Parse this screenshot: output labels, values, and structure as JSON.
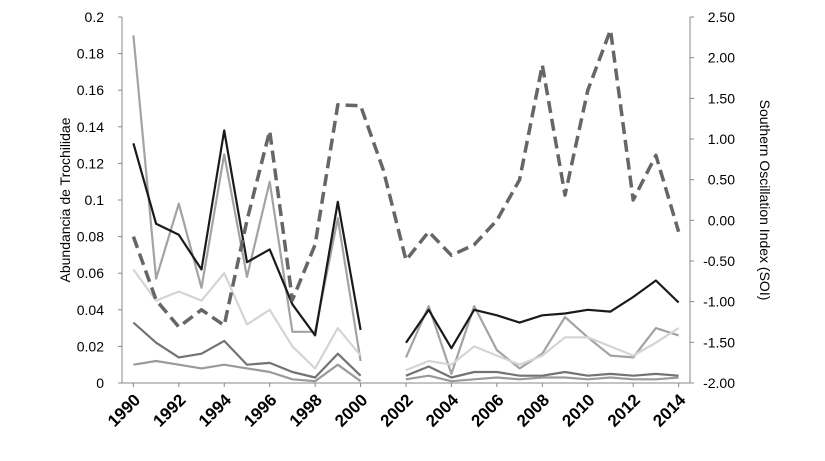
{
  "chart_data": {
    "type": "line",
    "y_label": "Abundancia de Trochilidae",
    "y2_label": "Southern Oscillation Index (SOI)",
    "x": [
      1990,
      1991,
      1992,
      1993,
      1994,
      1995,
      1996,
      1997,
      1998,
      1999,
      2000,
      2001,
      2002,
      2003,
      2004,
      2005,
      2006,
      2007,
      2008,
      2009,
      2010,
      2011,
      2012,
      2013,
      2014
    ],
    "xlim": [
      1989.5,
      2014.5
    ],
    "xticks": [
      1990,
      1992,
      1994,
      1996,
      1998,
      2000,
      2002,
      2004,
      2006,
      2008,
      2010,
      2012,
      2014
    ],
    "ylim": [
      0,
      0.2
    ],
    "yticks": [
      0,
      0.02,
      0.04,
      0.06,
      0.08,
      0.1,
      0.12,
      0.14,
      0.16,
      0.18,
      0.2
    ],
    "y2lim": [
      -2,
      2.5
    ],
    "y2ticks": [
      {
        "value": -2,
        "label": "-2.00"
      },
      {
        "value": -1.5,
        "label": "-1.50"
      },
      {
        "value": -1,
        "label": "-1.00"
      },
      {
        "value": -0.5,
        "label": "-0.50"
      },
      {
        "value": 0,
        "label": "0.00"
      },
      {
        "value": 0.5,
        "label": "0.50"
      },
      {
        "value": 1,
        "label": "1.00"
      },
      {
        "value": 1.5,
        "label": "1.50"
      },
      {
        "value": 2,
        "label": "2.00"
      },
      {
        "value": 2.5,
        "label": "2.50"
      }
    ],
    "series": [
      {
        "color": "#a3a3a3",
        "values": [
          0.19,
          0.057,
          0.098,
          0.052,
          0.125,
          0.058,
          0.11,
          0.028,
          0.028,
          0.09,
          0.012,
          null,
          0.014,
          0.042,
          0.005,
          0.042,
          0.018,
          0.008,
          0.016,
          0.036,
          0.025,
          0.015,
          0.014,
          0.03,
          0.026
        ]
      },
      {
        "color": "#d4d4d4",
        "values": [
          0.062,
          0.045,
          0.05,
          0.045,
          0.06,
          0.032,
          0.04,
          0.02,
          0.008,
          0.03,
          0.015,
          null,
          0.007,
          0.012,
          0.01,
          0.02,
          0.015,
          0.01,
          0.015,
          0.025,
          0.025,
          0.02,
          0.015,
          0.022,
          0.03
        ]
      },
      {
        "color": "#737373",
        "values": [
          0.033,
          0.022,
          0.014,
          0.016,
          0.023,
          0.01,
          0.011,
          0.006,
          0.003,
          0.016,
          0.004,
          null,
          0.004,
          0.009,
          0.003,
          0.006,
          0.006,
          0.004,
          0.004,
          0.006,
          0.004,
          0.005,
          0.004,
          0.005,
          0.004
        ]
      },
      {
        "color": "#9a9a9a",
        "values": [
          0.01,
          0.012,
          0.01,
          0.008,
          0.01,
          0.008,
          0.006,
          0.002,
          0.001,
          0.01,
          0.001,
          null,
          0.002,
          0.004,
          0.001,
          0.002,
          0.003,
          0.002,
          0.003,
          0.003,
          0.002,
          0.003,
          0.002,
          0.002,
          0.003
        ]
      },
      {
        "color": "#1a1a1a",
        "values": [
          0.131,
          0.087,
          0.081,
          0.062,
          0.138,
          0.066,
          0.073,
          0.043,
          0.026,
          0.099,
          0.029,
          null,
          0.022,
          0.04,
          0.019,
          0.04,
          0.037,
          0.033,
          0.037,
          0.038,
          0.04,
          0.039,
          0.047,
          0.056,
          0.044
        ]
      },
      {
        "color": "#666666",
        "dashed": true,
        "axis": "y2",
        "values": [
          -0.2,
          -0.98,
          -1.31,
          -1.1,
          -1.29,
          0,
          1.1,
          -0.98,
          -0.3,
          1.42,
          1.41,
          0.62,
          -0.49,
          -0.14,
          -0.43,
          -0.3,
          0,
          0.5,
          1.91,
          0.31,
          1.6,
          2.34,
          0.25,
          0.8,
          -0.14
        ]
      }
    ]
  }
}
